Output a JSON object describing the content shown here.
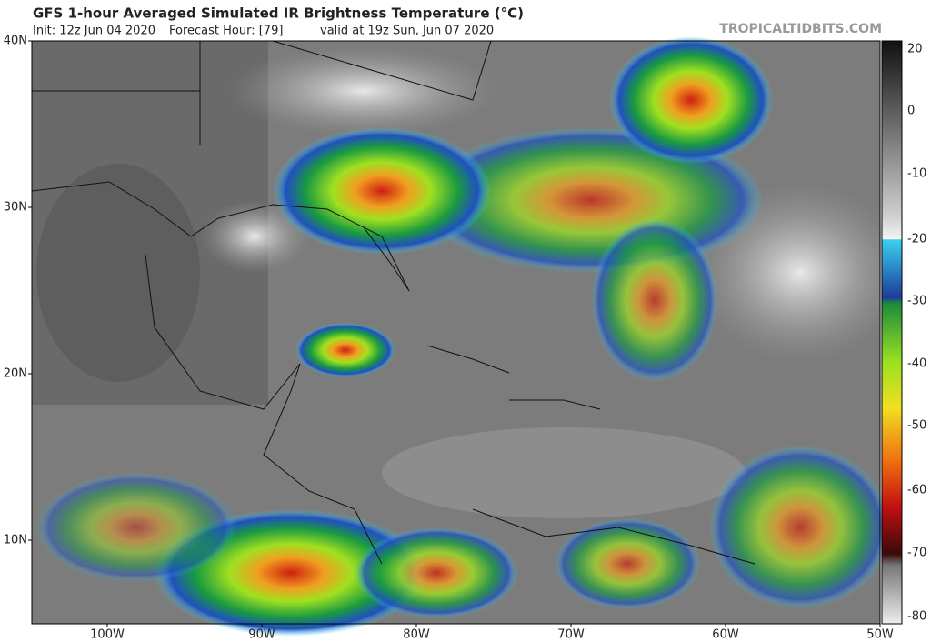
{
  "header": {
    "title": "GFS 1-hour Averaged Simulated IR Brightness Temperature (°C)",
    "init": "Init: 12z Jun 04 2020",
    "forecast": "Forecast Hour: [79]",
    "valid": "valid at 19z Sun, Jun 07 2020",
    "watermark": "TROPICALTIDBITS.COM"
  },
  "map": {
    "lat_labels": [
      "40N",
      "30N",
      "20N",
      "10N"
    ],
    "lon_labels": [
      "100W",
      "90W",
      "80W",
      "70W",
      "60W",
      "50W"
    ]
  },
  "colorbar": {
    "ticks": [
      "20",
      "0",
      "-10",
      "-20",
      "-30",
      "-40",
      "-50",
      "-60",
      "-70",
      "-80"
    ]
  }
}
